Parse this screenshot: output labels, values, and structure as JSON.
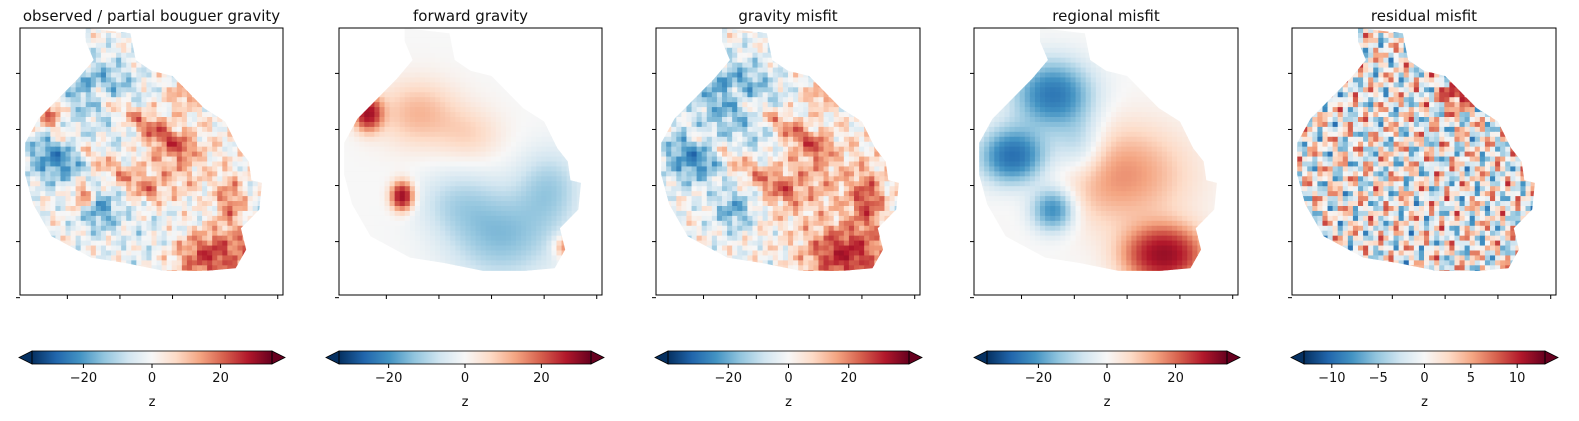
{
  "chart_data": [
    {
      "type": "heatmap",
      "title": "observed / partial bouguer gravity",
      "colormap": "RdBu_r",
      "x_tick_labels": [
        "",
        "",
        "",
        "",
        ""
      ],
      "y_tick_labels": [
        "",
        "",
        "",
        "",
        ""
      ],
      "colorbar": {
        "label": "z",
        "range": [
          -35,
          35
        ],
        "ticks": [
          -20,
          0,
          20
        ],
        "tick_labels": [
          "−20",
          "0",
          "20"
        ],
        "extend": "both"
      }
    },
    {
      "type": "heatmap",
      "title": "forward gravity",
      "colormap": "RdBu_r",
      "x_tick_labels": [
        "",
        "",
        "",
        "",
        ""
      ],
      "y_tick_labels": [
        "",
        "",
        "",
        "",
        ""
      ],
      "colorbar": {
        "label": "z",
        "range": [
          -33,
          33
        ],
        "ticks": [
          -20,
          0,
          20
        ],
        "tick_labels": [
          "−20",
          "0",
          "20"
        ],
        "extend": "both"
      }
    },
    {
      "type": "heatmap",
      "title": "gravity misfit",
      "colormap": "RdBu_r",
      "x_tick_labels": [
        "",
        "",
        "",
        "",
        ""
      ],
      "y_tick_labels": [
        "",
        "",
        "",
        "",
        ""
      ],
      "colorbar": {
        "label": "z",
        "range": [
          -40,
          40
        ],
        "ticks": [
          -20,
          0,
          20
        ],
        "tick_labels": [
          "−20",
          "0",
          "20"
        ],
        "extend": "both"
      }
    },
    {
      "type": "heatmap",
      "title": "regional misfit",
      "colormap": "RdBu_r",
      "x_tick_labels": [
        "",
        "",
        "",
        "",
        ""
      ],
      "y_tick_labels": [
        "",
        "",
        "",
        "",
        ""
      ],
      "colorbar": {
        "label": "z",
        "range": [
          -35,
          35
        ],
        "ticks": [
          -20,
          0,
          20
        ],
        "tick_labels": [
          "−20",
          "0",
          "20"
        ],
        "extend": "both"
      }
    },
    {
      "type": "heatmap",
      "title": "residual misfit",
      "colormap": "RdBu_r",
      "x_tick_labels": [
        "",
        "",
        "",
        "",
        ""
      ],
      "y_tick_labels": [
        "",
        "",
        "",
        "",
        ""
      ],
      "colorbar": {
        "label": "z",
        "range": [
          -13,
          13
        ],
        "ticks": [
          -10,
          -5,
          0,
          5,
          10
        ],
        "tick_labels": [
          "−10",
          "−5",
          "0",
          "5",
          "10"
        ],
        "extend": "both"
      }
    }
  ]
}
